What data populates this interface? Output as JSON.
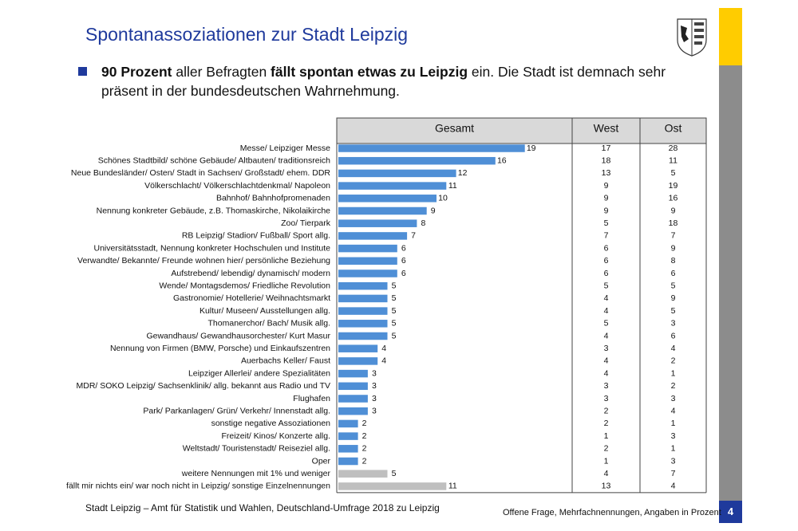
{
  "slide": {
    "title": "Spontanassoziationen zur Stadt Leipzig",
    "bullet": [
      {
        "text": "90 Prozent",
        "bold": true
      },
      {
        "text": " aller Befragten ",
        "bold": false
      },
      {
        "text": "fällt spontan etwas zu Leipzig",
        "bold": true
      },
      {
        "text": " ein. Die Stadt ist demnach sehr präsent in der bundesdeutschen Wahrnehmung.",
        "bold": false
      }
    ],
    "footer_left": "Stadt Leipzig – Amt für Statistik und Wahlen, Deutschland-Umfrage 2018 zu Leipzig",
    "footer_right": "Offene Frage, Mehrfachnennungen, Angaben in Prozent",
    "page": 4
  },
  "chart_data": {
    "type": "bar",
    "orientation": "horizontal",
    "categories": [
      "Messe/ Leipziger Messe",
      "Schönes Stadtbild/ schöne Gebäude/ Altbauten/ traditionsreich",
      "Neue Bundesländer/ Osten/ Stadt in Sachsen/ Großstadt/ ehem. DDR",
      "Völkerschlacht/ Völkerschlachtdenkmal/ Napoleon",
      "Bahnhof/ Bahnhofpromenaden",
      "Nennung konkreter Gebäude, z.B. Thomaskirche, Nikolaikirche",
      "Zoo/ Tierpark",
      "RB Leipzig/ Stadion/ Fußball/ Sport allg.",
      "Universitätsstadt, Nennung konkreter Hochschulen und Institute",
      "Verwandte/ Bekannte/ Freunde wohnen  hier/ persönliche Beziehung",
      "Aufstrebend/ lebendig/ dynamisch/ modern",
      "Wende/ Montagsdemos/ Friedliche Revolution",
      "Gastronomie/ Hotellerie/ Weihnachtsmarkt",
      "Kultur/ Museen/ Ausstellungen allg.",
      "Thomanerchor/ Bach/ Musik allg.",
      "Gewandhaus/ Gewandhausorchester/ Kurt Masur",
      "Nennung von Firmen (BMW, Porsche) und Einkaufszentren",
      "Auerbachs Keller/ Faust",
      "Leipziger Allerlei/ andere Spezialitäten",
      "MDR/ SOKO Leipzig/ Sachsenklinik/ allg. bekannt aus Radio und TV",
      "Flughafen",
      "Park/ Parkanlagen/ Grün/ Verkehr/ Innenstadt allg.",
      "sonstige negative Assoziationen",
      "Freizeit/ Kinos/ Konzerte allg.",
      "Weltstadt/ Touristenstadt/ Reiseziel allg.",
      "Oper",
      "weitere Nennungen mit 1% und weniger",
      "fällt mir nichts ein/ war noch nicht in Leipzig/ sonstige Einzelnennungen"
    ],
    "series": [
      {
        "name": "Gesamt",
        "values": [
          19,
          16,
          12,
          11,
          10,
          9,
          8,
          7,
          6,
          6,
          6,
          5,
          5,
          5,
          5,
          5,
          4,
          4,
          3,
          3,
          3,
          3,
          2,
          2,
          2,
          2,
          5,
          11
        ],
        "colors": [
          "#4f8fd6",
          "#4f8fd6",
          "#4f8fd6",
          "#4f8fd6",
          "#4f8fd6",
          "#4f8fd6",
          "#4f8fd6",
          "#4f8fd6",
          "#4f8fd6",
          "#4f8fd6",
          "#4f8fd6",
          "#4f8fd6",
          "#4f8fd6",
          "#4f8fd6",
          "#4f8fd6",
          "#4f8fd6",
          "#4f8fd6",
          "#4f8fd6",
          "#4f8fd6",
          "#4f8fd6",
          "#4f8fd6",
          "#4f8fd6",
          "#4f8fd6",
          "#4f8fd6",
          "#4f8fd6",
          "#4f8fd6",
          "#bfbfbf",
          "#bfbfbf"
        ]
      },
      {
        "name": "West",
        "values": [
          17,
          18,
          13,
          9,
          9,
          9,
          5,
          7,
          6,
          6,
          6,
          5,
          4,
          4,
          5,
          4,
          3,
          4,
          4,
          3,
          3,
          2,
          2,
          1,
          2,
          1,
          4,
          13
        ]
      },
      {
        "name": "Ost",
        "values": [
          28,
          11,
          5,
          19,
          16,
          9,
          18,
          7,
          9,
          8,
          6,
          5,
          9,
          5,
          3,
          6,
          4,
          2,
          1,
          2,
          3,
          4,
          1,
          3,
          1,
          3,
          7,
          4
        ]
      }
    ]
  }
}
